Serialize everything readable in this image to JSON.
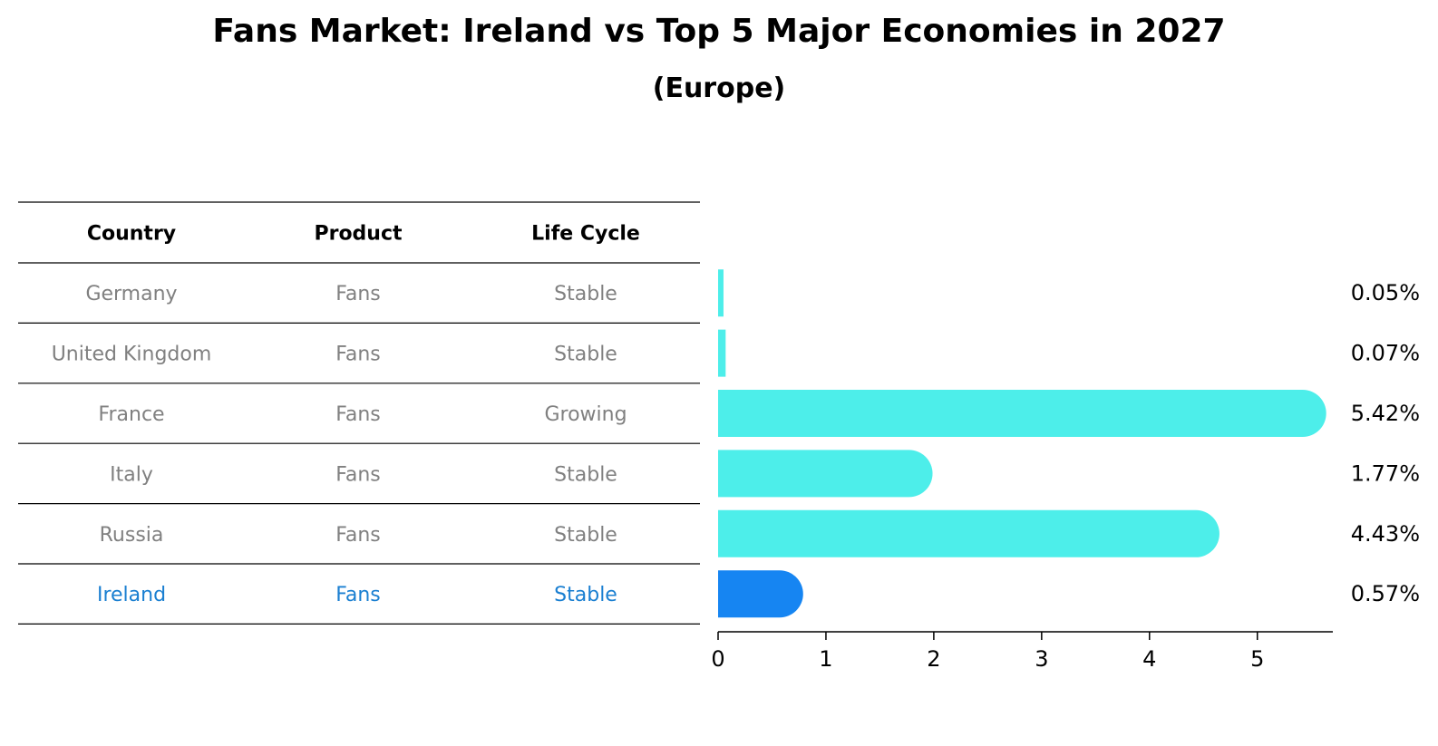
{
  "title": "Fans Market: Ireland vs Top 5 Major Economies in 2027",
  "subtitle": "(Europe)",
  "table": {
    "headers": [
      "Country",
      "Product",
      "Life Cycle"
    ],
    "rows": [
      {
        "country": "Germany",
        "product": "Fans",
        "life_cycle": "Stable"
      },
      {
        "country": "United Kingdom",
        "product": "Fans",
        "life_cycle": "Stable"
      },
      {
        "country": "France",
        "product": "Fans",
        "life_cycle": "Growing"
      },
      {
        "country": "Italy",
        "product": "Fans",
        "life_cycle": "Stable"
      },
      {
        "country": "Russia",
        "product": "Fans",
        "life_cycle": "Stable"
      },
      {
        "country": "Ireland",
        "product": "Fans",
        "life_cycle": "Stable"
      }
    ]
  },
  "colors": {
    "bar": "#4deeea",
    "highlight_bar": "#1685f2",
    "highlight_text": "#1a7fd1",
    "row_text": "#808080"
  },
  "chart_data": {
    "type": "bar",
    "orientation": "horizontal",
    "categories": [
      "Germany",
      "United Kingdom",
      "France",
      "Italy",
      "Russia",
      "Ireland"
    ],
    "values": [
      0.05,
      0.07,
      5.42,
      1.77,
      4.43,
      0.57
    ],
    "value_labels": [
      "0.05%",
      "0.07%",
      "5.42%",
      "1.77%",
      "4.43%",
      "0.57%"
    ],
    "highlight": "Ireland",
    "xlim": [
      0,
      5.7
    ],
    "xticks": [
      0,
      1,
      2,
      3,
      4,
      5
    ],
    "grid": false
  }
}
